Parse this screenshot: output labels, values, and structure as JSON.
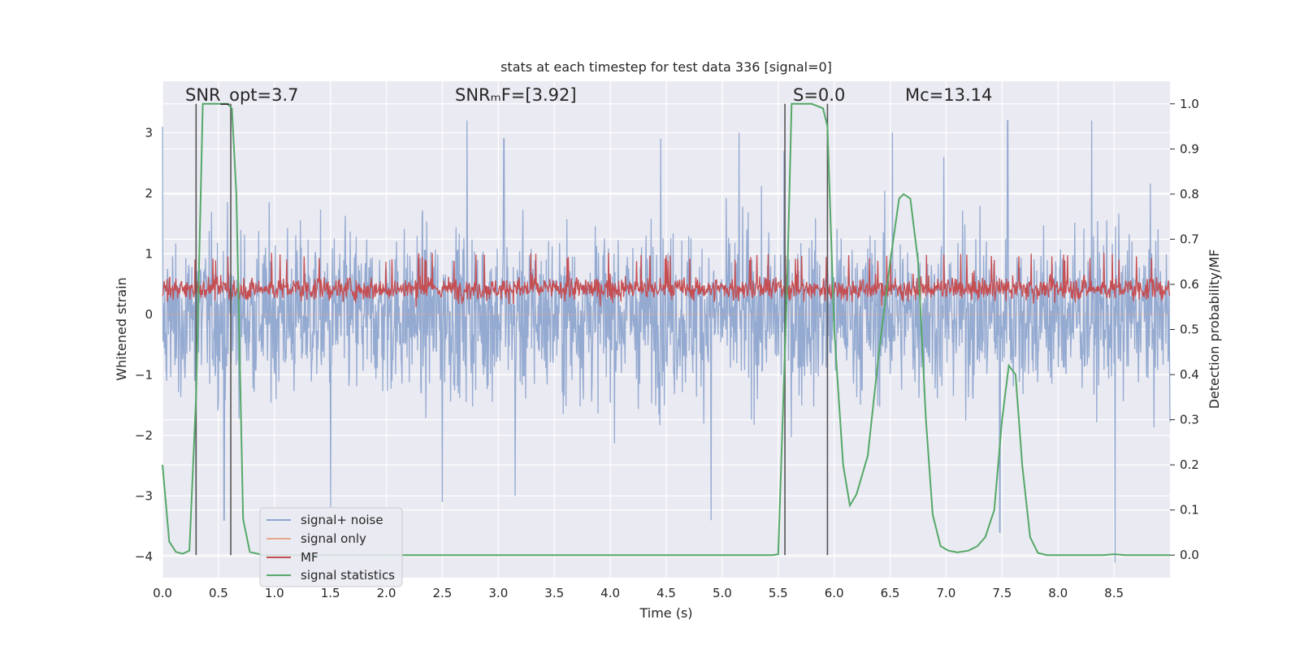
{
  "chart_data": {
    "type": "line",
    "title": "stats at each timestep for test data 336 [signal=0]",
    "xlabel": "Time (s)",
    "ylabel_left": "Whitened strain",
    "ylabel_right": "Detection probability/MF",
    "xlim": [
      0.0,
      9.0
    ],
    "ylim_left": [
      -4.35,
      3.85
    ],
    "ylim_right": [
      -0.05,
      1.05
    ],
    "xticks": [
      "0.0",
      "0.5",
      "1.0",
      "1.5",
      "2.0",
      "2.5",
      "3.0",
      "3.5",
      "4.0",
      "4.5",
      "5.0",
      "5.5",
      "6.0",
      "6.5",
      "7.0",
      "7.5",
      "8.0",
      "8.5"
    ],
    "yticks_left": [
      "3",
      "2",
      "1",
      "0",
      "−1",
      "−2",
      "−3",
      "−4"
    ],
    "yticks_right": [
      "1.0",
      "0.9",
      "0.8",
      "0.7",
      "0.6",
      "0.5",
      "0.4",
      "0.3",
      "0.2",
      "0.1",
      "0.0"
    ],
    "grid": true,
    "legend_position": "lower-left",
    "annotations": {
      "snr_opt": "SNR_opt=3.7",
      "snr_mf": "SNRₘF=[3.92]",
      "s": "S=0.0",
      "mc": "Mᴄ=13.14"
    },
    "vertical_markers_s": [
      0.3,
      0.61,
      5.56,
      5.94
    ],
    "series": [
      {
        "name": "signal+ noise",
        "color": "#8fa6cf",
        "axis": "left",
        "description": "whitened strain noise, values roughly within [-3.5, 3.3]",
        "envelope": [
          -1.8,
          2.4
        ],
        "peaks_sample": [
          [
            0.0,
            3.1
          ],
          [
            0.55,
            -3.4
          ],
          [
            1.5,
            -3.2
          ],
          [
            2.72,
            3.2
          ],
          [
            3.05,
            2.9
          ],
          [
            4.45,
            2.9
          ],
          [
            5.15,
            3.0
          ],
          [
            5.55,
            2.7
          ],
          [
            6.52,
            3.0
          ],
          [
            6.98,
            2.6
          ],
          [
            7.48,
            -3.6
          ],
          [
            7.55,
            3.2
          ],
          [
            8.3,
            3.2
          ],
          [
            8.51,
            -4.1
          ],
          [
            4.9,
            -3.4
          ],
          [
            2.5,
            -3.1
          ],
          [
            3.15,
            -3.0
          ],
          [
            0.3,
            -3.6
          ]
        ]
      },
      {
        "name": "signal only",
        "color": "#e8a58c",
        "axis": "left",
        "values_note": "zero throughout (no signal injected)"
      },
      {
        "name": "MF",
        "color": "#c44e52",
        "axis": "right",
        "envelope": [
          0.54,
          0.64
        ]
      },
      {
        "name": "signal statistics",
        "color": "#55a868",
        "axis": "right",
        "points": [
          [
            0.0,
            0.2
          ],
          [
            0.06,
            0.03
          ],
          [
            0.12,
            0.007
          ],
          [
            0.18,
            0.003
          ],
          [
            0.24,
            0.01
          ],
          [
            0.3,
            0.35
          ],
          [
            0.36,
            1.0
          ],
          [
            0.42,
            1.0
          ],
          [
            0.5,
            1.0
          ],
          [
            0.58,
            1.0
          ],
          [
            0.62,
            0.99
          ],
          [
            0.66,
            0.8
          ],
          [
            0.72,
            0.08
          ],
          [
            0.78,
            0.007
          ],
          [
            0.9,
            0.0
          ],
          [
            2.0,
            0.0
          ],
          [
            4.0,
            0.0
          ],
          [
            5.45,
            0.0
          ],
          [
            5.5,
            0.002
          ],
          [
            5.58,
            0.6
          ],
          [
            5.62,
            1.0
          ],
          [
            5.7,
            1.0
          ],
          [
            5.8,
            1.0
          ],
          [
            5.9,
            0.99
          ],
          [
            5.94,
            0.95
          ],
          [
            6.0,
            0.5
          ],
          [
            6.08,
            0.2
          ],
          [
            6.14,
            0.11
          ],
          [
            6.2,
            0.135
          ],
          [
            6.3,
            0.22
          ],
          [
            6.4,
            0.45
          ],
          [
            6.5,
            0.65
          ],
          [
            6.58,
            0.79
          ],
          [
            6.62,
            0.8
          ],
          [
            6.68,
            0.79
          ],
          [
            6.75,
            0.65
          ],
          [
            6.82,
            0.3
          ],
          [
            6.88,
            0.09
          ],
          [
            6.95,
            0.02
          ],
          [
            7.02,
            0.01
          ],
          [
            7.1,
            0.006
          ],
          [
            7.2,
            0.01
          ],
          [
            7.28,
            0.02
          ],
          [
            7.35,
            0.04
          ],
          [
            7.43,
            0.1
          ],
          [
            7.5,
            0.3
          ],
          [
            7.56,
            0.42
          ],
          [
            7.62,
            0.4
          ],
          [
            7.68,
            0.2
          ],
          [
            7.75,
            0.04
          ],
          [
            7.82,
            0.005
          ],
          [
            7.9,
            0.0
          ],
          [
            8.0,
            0.0
          ],
          [
            8.4,
            0.0
          ],
          [
            8.5,
            0.002
          ],
          [
            8.6,
            0.0
          ],
          [
            9.0,
            0.0
          ]
        ]
      }
    ]
  }
}
